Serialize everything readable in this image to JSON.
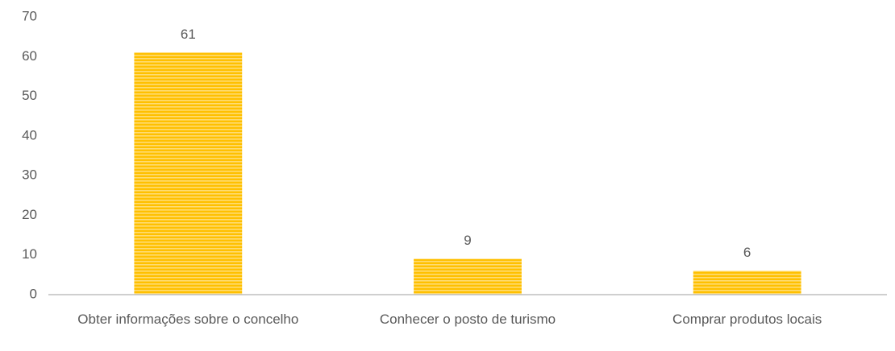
{
  "chart_data": {
    "type": "bar",
    "categories": [
      "Obter informações sobre o concelho",
      "Conhecer o posto de turismo",
      "Comprar produtos locais"
    ],
    "values": [
      61,
      9,
      6
    ],
    "color": "#FFC000",
    "ylim": [
      0,
      70
    ],
    "yticks": [
      0,
      10,
      20,
      30,
      40,
      50,
      60,
      70
    ],
    "grid": false
  }
}
